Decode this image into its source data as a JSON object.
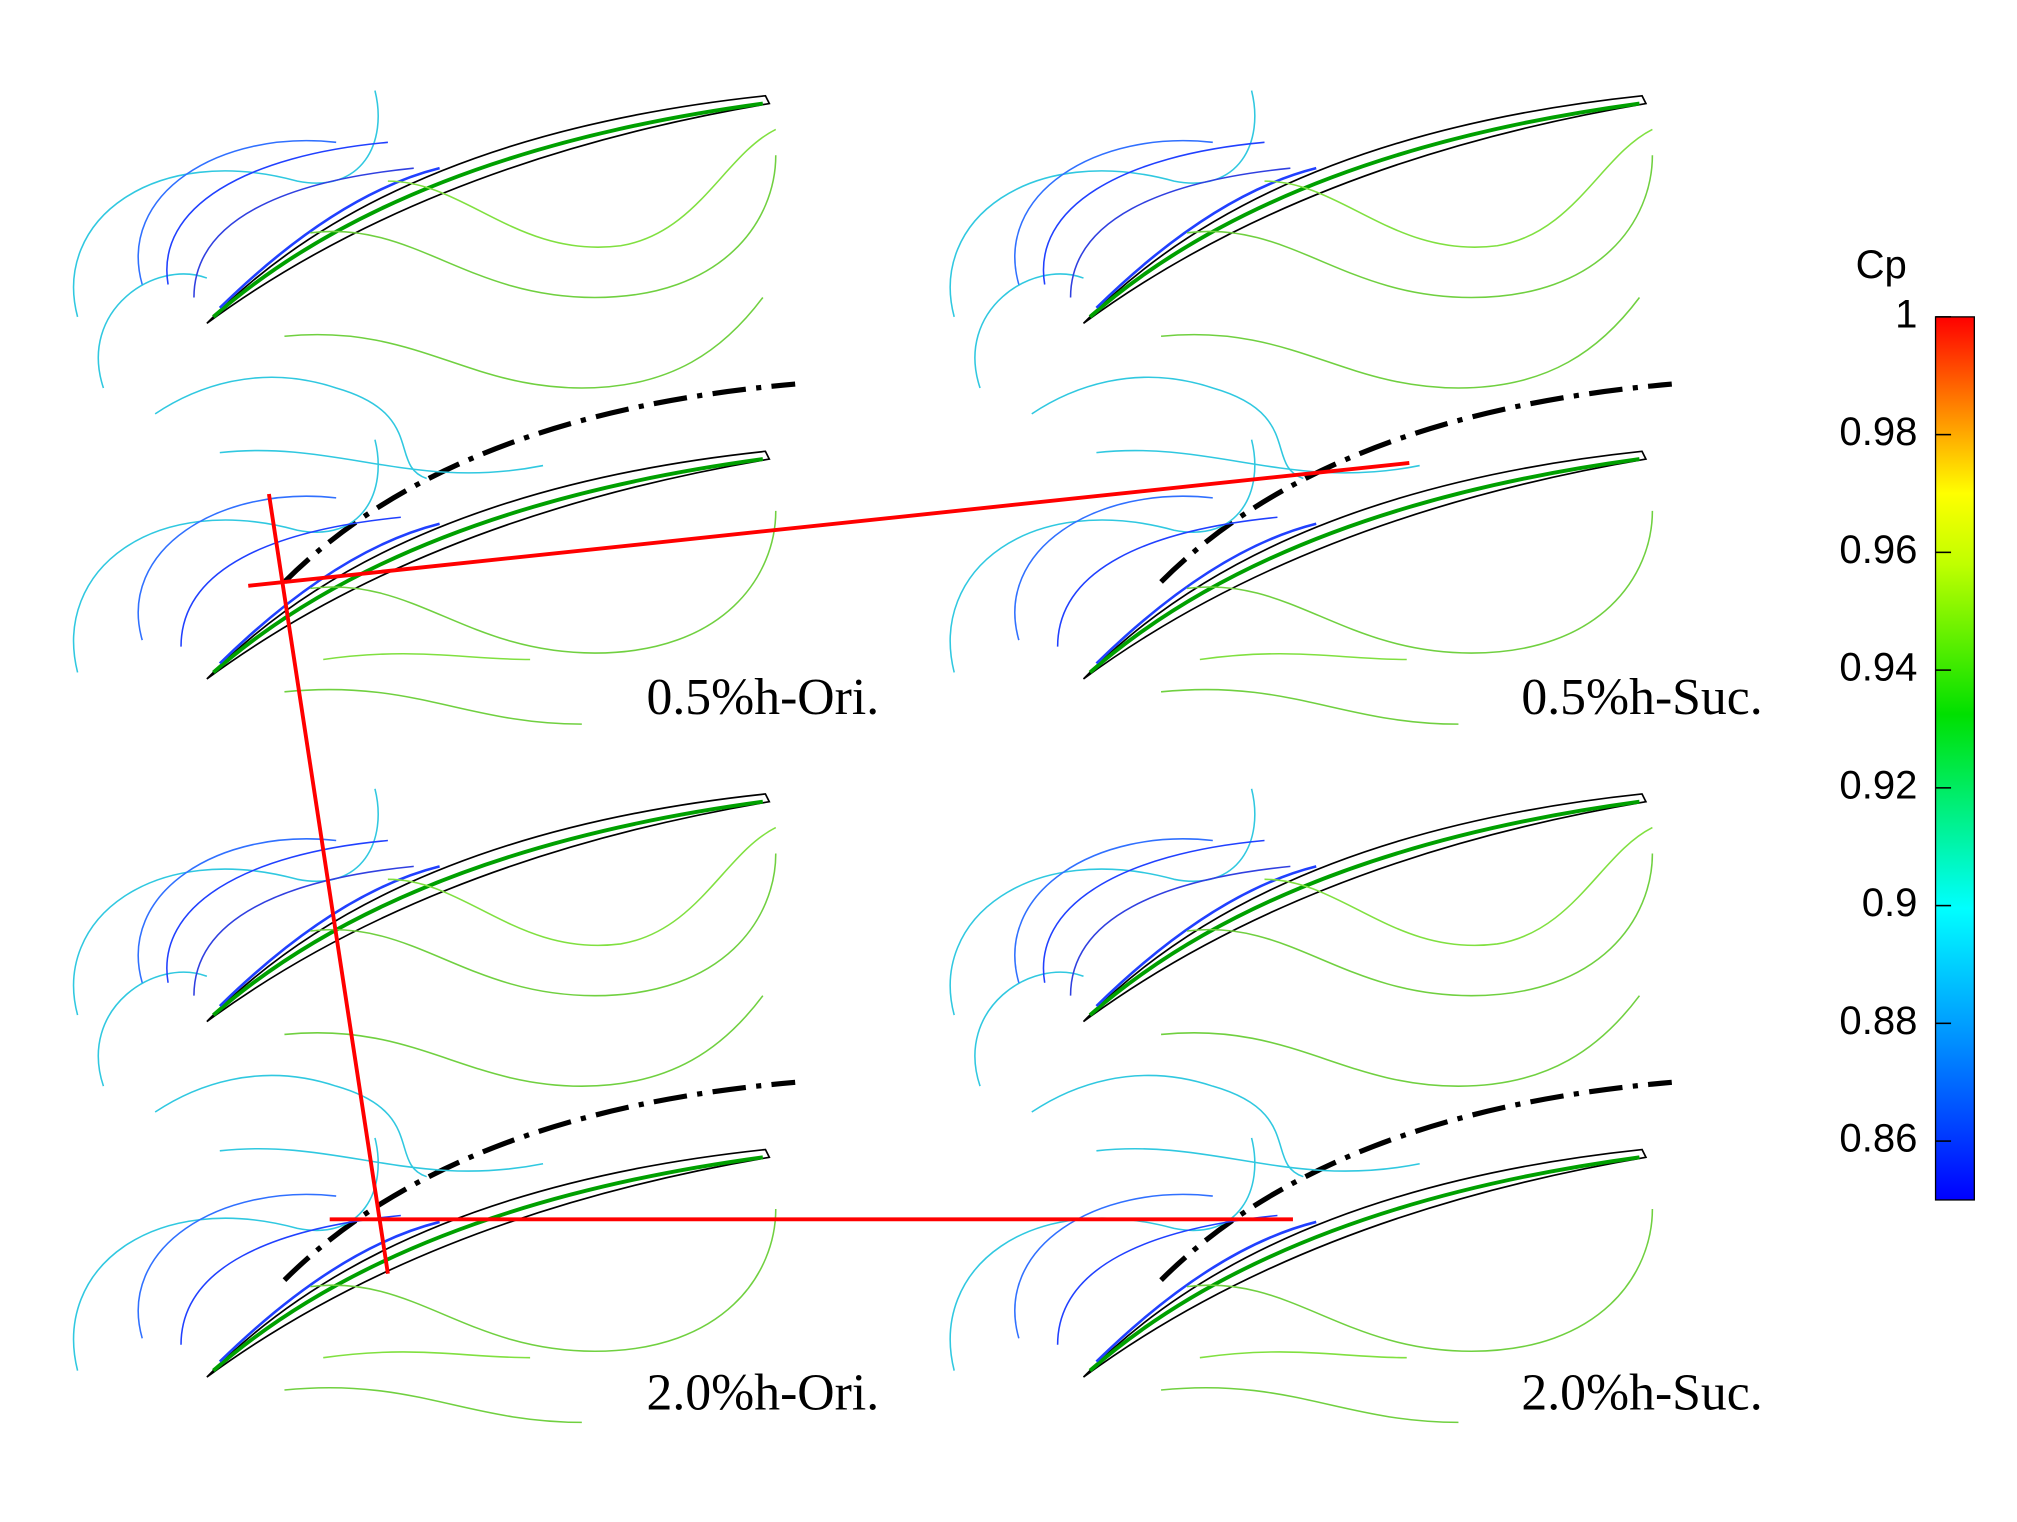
{
  "panels": [
    {
      "label": "0.5%h-Ori."
    },
    {
      "label": "0.5%h-Suc."
    },
    {
      "label": "2.0%h-Ori."
    },
    {
      "label": "2.0%h-Suc."
    }
  ],
  "colorbar": {
    "title": "Cp",
    "lim": [
      0.85,
      1
    ],
    "ticks": [
      1,
      0.98,
      0.96,
      0.94,
      0.92,
      0.9,
      0.88,
      0.86
    ]
  }
}
